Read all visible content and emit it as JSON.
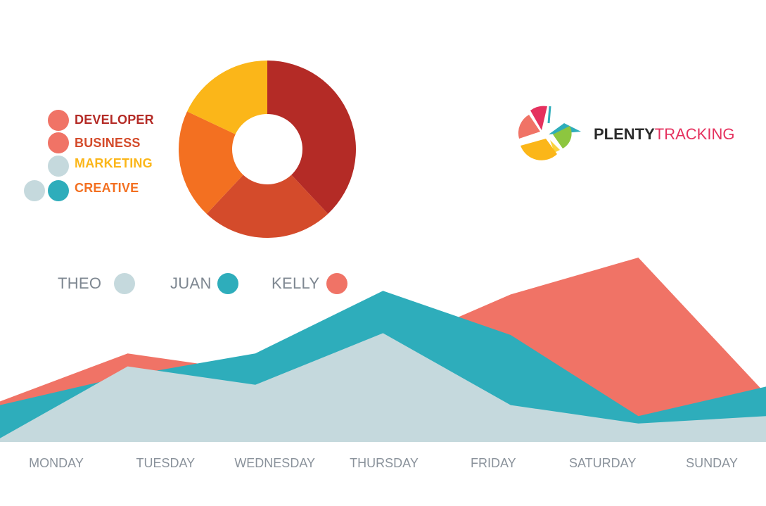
{
  "brand": {
    "name_bold": "PLENTY",
    "name_light": "TRACKING"
  },
  "colors": {
    "developer": "#b42b26",
    "business": "#d44b2b",
    "marketing": "#fbb619",
    "creative": "#f37021",
    "theo": "#c5d9dd",
    "juan": "#2eadbb",
    "kelly": "#f07366",
    "legend_salmon": "#f07366",
    "legend_pale": "#c5d9dd",
    "legend_teal": "#2eadbb"
  },
  "chart_data": [
    {
      "type": "pie",
      "donut": true,
      "legend": [
        "DEVELOPER",
        "BUSINESS",
        "MARKETING",
        "CREATIVE"
      ],
      "slices": [
        {
          "name": "DEVELOPER",
          "value": 38
        },
        {
          "name": "BUSINESS",
          "value": 24
        },
        {
          "name": "CREATIVE",
          "value": 20
        },
        {
          "name": "MARKETING",
          "value": 18
        }
      ]
    },
    {
      "type": "area",
      "categories": [
        "MONDAY",
        "TUESDAY",
        "WEDNESDAY",
        "THURSDAY",
        "FRIDAY",
        "SATURDAY",
        "SUNDAY"
      ],
      "ylim": [
        0,
        100
      ],
      "legend_placement": "top-left",
      "series": [
        {
          "name": "KELLY",
          "values": [
            22,
            48,
            38,
            50,
            80,
            100,
            26
          ]
        },
        {
          "name": "JUAN",
          "values": [
            20,
            36,
            48,
            82,
            58,
            14,
            30
          ]
        },
        {
          "name": "THEO",
          "values": [
            2,
            41,
            31,
            59,
            20,
            10,
            14
          ]
        }
      ]
    }
  ]
}
